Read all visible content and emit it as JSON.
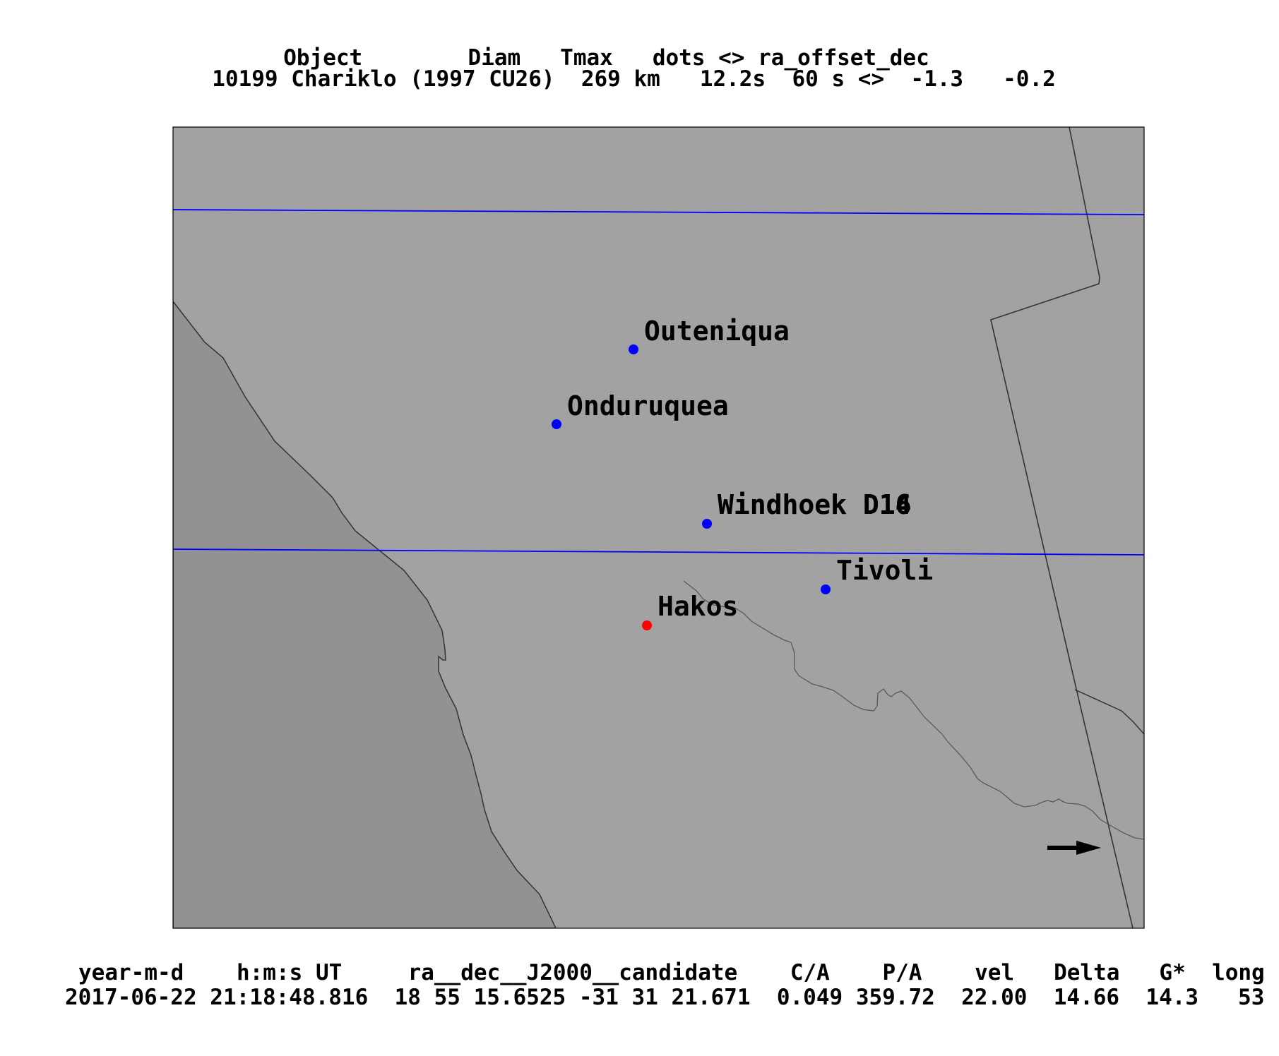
{
  "header": {
    "line1": "Object        Diam   Tmax   dots <> ra_offset_dec",
    "line2": "10199 Chariklo (1997 CU26)  269 km   12.2s  60 s <>  -1.3   -0.2"
  },
  "map": {
    "colors": {
      "land": "#a2a2a2",
      "sea": "#929292",
      "path_line": "#0000ff",
      "border": "#333333",
      "site_blue": "#0000ff",
      "site_red": "#ff0000",
      "arrow": "#000000"
    },
    "sites": [
      {
        "name": "Outeniqua",
        "color": "blue"
      },
      {
        "name": "Onduruquea",
        "color": "blue"
      },
      {
        "name": "Windhoek D16",
        "overlap_label": "Windhoek D14",
        "color": "blue"
      },
      {
        "name": "Tivoli",
        "color": "blue"
      },
      {
        "name": "Hakos",
        "color": "red"
      }
    ],
    "motion_arrow": "right-arrow"
  },
  "footer": {
    "line1": "year-m-d    h:m:s UT     ra__dec__J2000__candidate    C/A    P/A    vel   Delta   G*  long",
    "line2": "2017-06-22 21:18:48.816  18 55 15.6525 -31 31 21.671  0.049 359.72  22.00  14.66  14.3   53"
  }
}
